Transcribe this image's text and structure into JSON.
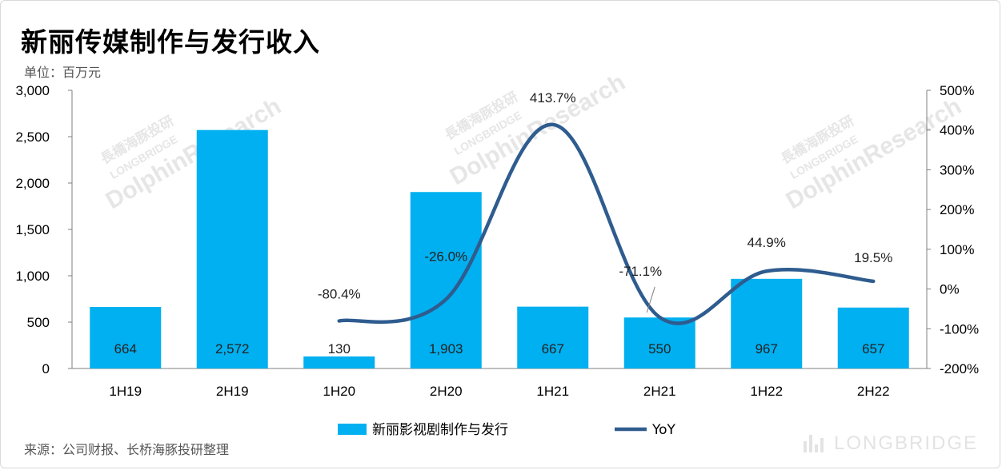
{
  "title": "新丽传媒制作与发行收入",
  "unit": "单位：百万元",
  "source": "来源：公司财报、长桥海豚投研整理",
  "watermark": {
    "line1": "長橋海豚投研",
    "line2": "LONGBRIDGE",
    "line3": "DolphinResearch",
    "brand": "LONGBRIDGE"
  },
  "chart_data": {
    "type": "bar",
    "categories": [
      "1H19",
      "2H19",
      "1H20",
      "2H20",
      "1H21",
      "2H21",
      "1H22",
      "2H22"
    ],
    "series": [
      {
        "name": "新丽影视剧制作与发行",
        "type": "bar",
        "axis": "left",
        "color": "#00b0f0",
        "values": [
          664,
          2572,
          130,
          1903,
          667,
          550,
          967,
          657
        ],
        "labels": [
          "664",
          "2,572",
          "130",
          "1,903",
          "667",
          "550",
          "967",
          "657"
        ]
      },
      {
        "name": "YoY",
        "type": "line",
        "axis": "right",
        "color": "#2f5c8f",
        "values": [
          null,
          null,
          -80.4,
          -26.0,
          413.7,
          -71.1,
          44.9,
          19.5
        ],
        "labels": [
          null,
          null,
          "-80.4%",
          "-26.0%",
          "413.7%",
          "-71.1%",
          "44.9%",
          "19.5%"
        ]
      }
    ],
    "y_left": {
      "min": 0,
      "max": 3000,
      "step": 500,
      "tick_labels": [
        "0",
        "500",
        "1,000",
        "1,500",
        "2,000",
        "2,500",
        "3,000"
      ]
    },
    "y_right": {
      "min": -200,
      "max": 500,
      "step": 100,
      "tick_labels": [
        "-200%",
        "-100%",
        "0%",
        "100%",
        "200%",
        "300%",
        "400%",
        "500%"
      ]
    },
    "grid": false,
    "legend": "bottom"
  }
}
